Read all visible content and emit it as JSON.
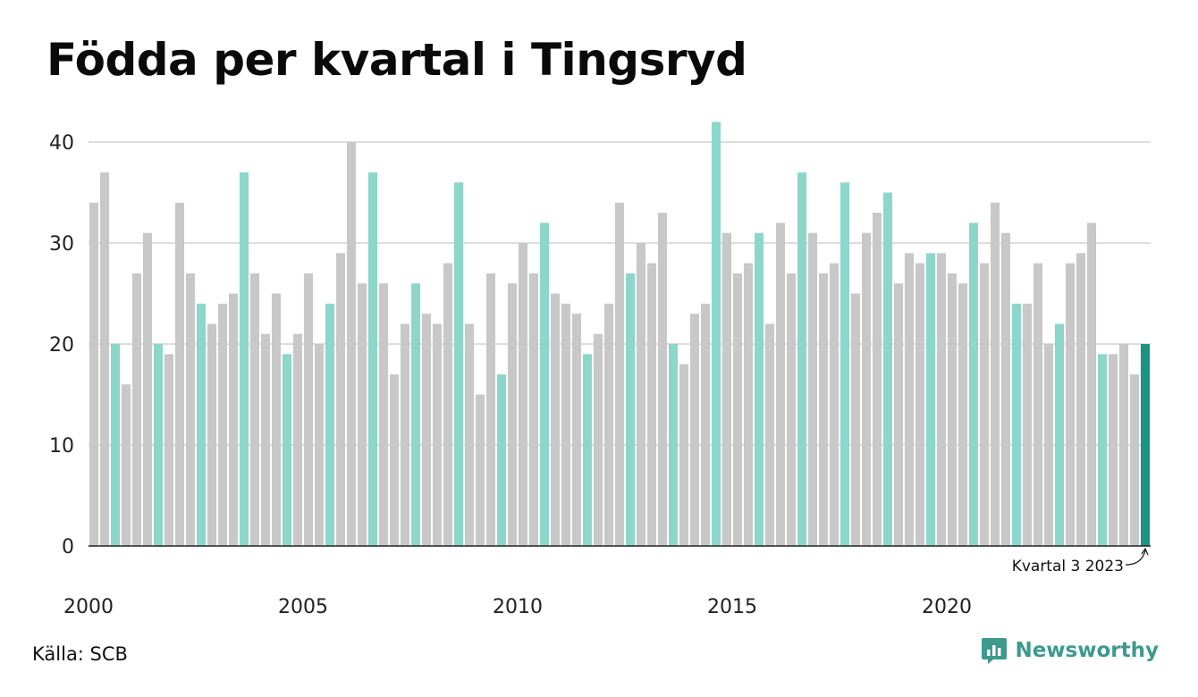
{
  "title": "Födda per kvartal i Tingsryd",
  "source": "Källa: SCB",
  "brand": "Newsworthy",
  "colors": {
    "grey": "#c8c8c8",
    "q3": "#8dd6cb",
    "highlight": "#1a9484",
    "grid": "#dddddd",
    "axis": "#222222",
    "brand": "#3d9a8c"
  },
  "chart_data": {
    "type": "bar",
    "title": "Födda per kvartal i Tingsryd",
    "xlabel": "",
    "ylabel": "",
    "ylim": [
      0,
      42
    ],
    "yticks": [
      0,
      10,
      20,
      30,
      40
    ],
    "x_tick_labels": [
      "2000",
      "2005",
      "2010",
      "2015",
      "2020"
    ],
    "grid": true,
    "start_year": 2000,
    "start_quarter": 1,
    "highlight_color_rule": "quarter 3 bars teal, latest bar dark teal",
    "values": [
      34,
      37,
      20,
      16,
      27,
      31,
      20,
      19,
      34,
      27,
      24,
      22,
      24,
      25,
      37,
      27,
      21,
      25,
      19,
      21,
      27,
      20,
      24,
      29,
      40,
      26,
      37,
      26,
      17,
      22,
      26,
      23,
      22,
      28,
      36,
      22,
      15,
      27,
      17,
      26,
      30,
      27,
      32,
      25,
      24,
      23,
      19,
      21,
      24,
      34,
      27,
      30,
      28,
      33,
      20,
      18,
      23,
      24,
      42,
      31,
      27,
      28,
      31,
      22,
      32,
      27,
      37,
      31,
      27,
      28,
      36,
      25,
      31,
      33,
      35,
      26,
      29,
      28,
      29,
      29,
      27,
      26,
      32,
      28,
      34,
      31,
      24,
      24,
      28,
      20,
      22,
      28,
      29,
      32,
      19,
      19,
      20,
      17,
      20
    ],
    "annotation": "Kvartal 3 2023"
  }
}
